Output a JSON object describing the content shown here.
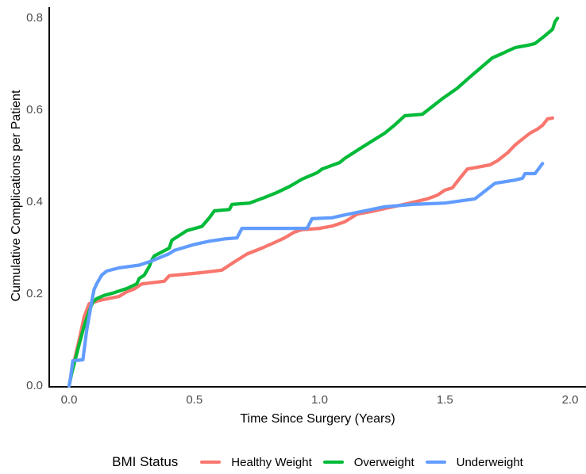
{
  "figure": {
    "background": "#FFFFFF"
  },
  "chart_data": {
    "type": "line",
    "title": "",
    "xlabel": "Time Since Surgery (Years)",
    "ylabel": "Cumulative Complications per Patient",
    "legend_title": "BMI Status",
    "legend_position": "bottom",
    "grid": false,
    "xlim": [
      0.0,
      2.0
    ],
    "ylim": [
      0.0,
      0.8
    ],
    "x_ticks": [
      "0.0",
      "0.5",
      "1.0",
      "1.5",
      "2.0"
    ],
    "x_tick_values": [
      0.0,
      0.5,
      1.0,
      1.5,
      2.0
    ],
    "y_ticks": [
      "0.0",
      "0.2",
      "0.4",
      "0.6",
      "0.8"
    ],
    "y_tick_values": [
      0.0,
      0.2,
      0.4,
      0.6,
      0.8
    ],
    "axis_line_color": "#000000",
    "tick_label_color": "#4D4D4D",
    "series": [
      {
        "name": "Healthy Weight",
        "color": "#F8766D",
        "points": [
          [
            0,
            0
          ],
          [
            0.01,
            0.03
          ],
          [
            0.04,
            0.1
          ],
          [
            0.06,
            0.15
          ],
          [
            0.08,
            0.179
          ],
          [
            0.12,
            0.186
          ],
          [
            0.2,
            0.195
          ],
          [
            0.23,
            0.205
          ],
          [
            0.26,
            0.211
          ],
          [
            0.29,
            0.222
          ],
          [
            0.38,
            0.228
          ],
          [
            0.4,
            0.24
          ],
          [
            0.5,
            0.245
          ],
          [
            0.55,
            0.248
          ],
          [
            0.61,
            0.252
          ],
          [
            0.66,
            0.27
          ],
          [
            0.71,
            0.287
          ],
          [
            0.77,
            0.3
          ],
          [
            0.82,
            0.312
          ],
          [
            0.86,
            0.322
          ],
          [
            0.9,
            0.335
          ],
          [
            0.93,
            0.34
          ],
          [
            1.0,
            0.343
          ],
          [
            1.05,
            0.348
          ],
          [
            1.1,
            0.357
          ],
          [
            1.15,
            0.374
          ],
          [
            1.22,
            0.381
          ],
          [
            1.26,
            0.386
          ],
          [
            1.32,
            0.393
          ],
          [
            1.36,
            0.398
          ],
          [
            1.43,
            0.407
          ],
          [
            1.47,
            0.415
          ],
          [
            1.5,
            0.426
          ],
          [
            1.53,
            0.431
          ],
          [
            1.56,
            0.452
          ],
          [
            1.59,
            0.472
          ],
          [
            1.63,
            0.476
          ],
          [
            1.68,
            0.481
          ],
          [
            1.71,
            0.49
          ],
          [
            1.75,
            0.507
          ],
          [
            1.78,
            0.524
          ],
          [
            1.8,
            0.533
          ],
          [
            1.84,
            0.55
          ],
          [
            1.87,
            0.559
          ],
          [
            1.89,
            0.567
          ],
          [
            1.91,
            0.581
          ],
          [
            1.93,
            0.583
          ]
        ]
      },
      {
        "name": "Overweight",
        "color": "#00BA38",
        "points": [
          [
            0,
            0
          ],
          [
            0.01,
            0.027
          ],
          [
            0.04,
            0.09
          ],
          [
            0.06,
            0.13
          ],
          [
            0.08,
            0.163
          ],
          [
            0.095,
            0.183
          ],
          [
            0.11,
            0.19
          ],
          [
            0.14,
            0.197
          ],
          [
            0.18,
            0.203
          ],
          [
            0.23,
            0.212
          ],
          [
            0.27,
            0.222
          ],
          [
            0.28,
            0.234
          ],
          [
            0.3,
            0.241
          ],
          [
            0.32,
            0.26
          ],
          [
            0.33,
            0.274
          ],
          [
            0.34,
            0.283
          ],
          [
            0.4,
            0.3
          ],
          [
            0.41,
            0.317
          ],
          [
            0.47,
            0.338
          ],
          [
            0.53,
            0.347
          ],
          [
            0.56,
            0.366
          ],
          [
            0.58,
            0.381
          ],
          [
            0.64,
            0.384
          ],
          [
            0.65,
            0.395
          ],
          [
            0.72,
            0.398
          ],
          [
            0.78,
            0.41
          ],
          [
            0.83,
            0.421
          ],
          [
            0.88,
            0.434
          ],
          [
            0.93,
            0.45
          ],
          [
            0.99,
            0.464
          ],
          [
            1.01,
            0.472
          ],
          [
            1.08,
            0.486
          ],
          [
            1.1,
            0.495
          ],
          [
            1.16,
            0.516
          ],
          [
            1.26,
            0.55
          ],
          [
            1.3,
            0.568
          ],
          [
            1.34,
            0.588
          ],
          [
            1.41,
            0.591
          ],
          [
            1.49,
            0.625
          ],
          [
            1.55,
            0.648
          ],
          [
            1.6,
            0.672
          ],
          [
            1.66,
            0.7
          ],
          [
            1.69,
            0.714
          ],
          [
            1.72,
            0.721
          ],
          [
            1.78,
            0.736
          ],
          [
            1.83,
            0.741
          ],
          [
            1.86,
            0.745
          ],
          [
            1.9,
            0.762
          ],
          [
            1.93,
            0.776
          ],
          [
            1.94,
            0.793
          ],
          [
            1.95,
            0.8
          ]
        ]
      },
      {
        "name": "Underweight",
        "color": "#619CFF",
        "points": [
          [
            0,
            0
          ],
          [
            0.005,
            0.015
          ],
          [
            0.015,
            0.055
          ],
          [
            0.055,
            0.057
          ],
          [
            0.07,
            0.12
          ],
          [
            0.09,
            0.183
          ],
          [
            0.1,
            0.21
          ],
          [
            0.11,
            0.222
          ],
          [
            0.13,
            0.241
          ],
          [
            0.15,
            0.25
          ],
          [
            0.2,
            0.257
          ],
          [
            0.28,
            0.263
          ],
          [
            0.33,
            0.272
          ],
          [
            0.4,
            0.288
          ],
          [
            0.42,
            0.295
          ],
          [
            0.5,
            0.308
          ],
          [
            0.56,
            0.315
          ],
          [
            0.62,
            0.32
          ],
          [
            0.67,
            0.322
          ],
          [
            0.69,
            0.343
          ],
          [
            0.95,
            0.343
          ],
          [
            0.97,
            0.364
          ],
          [
            1.05,
            0.366
          ],
          [
            1.1,
            0.372
          ],
          [
            1.18,
            0.381
          ],
          [
            1.26,
            0.39
          ],
          [
            1.37,
            0.395
          ],
          [
            1.5,
            0.398
          ],
          [
            1.62,
            0.407
          ],
          [
            1.7,
            0.441
          ],
          [
            1.78,
            0.448
          ],
          [
            1.81,
            0.452
          ],
          [
            1.82,
            0.462
          ],
          [
            1.86,
            0.462
          ],
          [
            1.89,
            0.484
          ]
        ]
      }
    ]
  }
}
